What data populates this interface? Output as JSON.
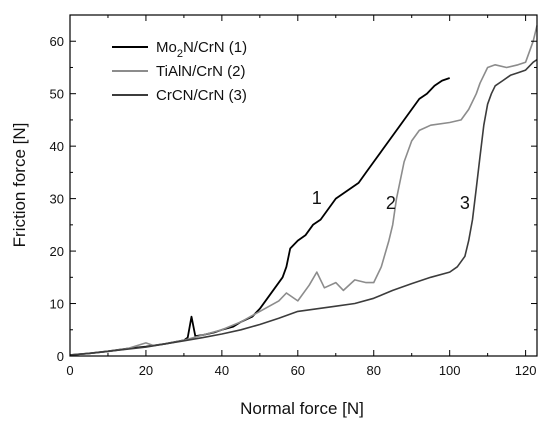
{
  "chart_data": {
    "type": "line",
    "xlabel": "Normal force [N]",
    "ylabel": "Friction force [N]",
    "xlim": [
      0,
      123
    ],
    "ylim": [
      0,
      65
    ],
    "x_ticks": [
      0,
      20,
      40,
      60,
      80,
      100,
      120
    ],
    "y_ticks": [
      0,
      10,
      20,
      30,
      40,
      50,
      60
    ],
    "legend_position": "top-left",
    "series": [
      {
        "name": "Mo₂N/CrN (1)",
        "name_base": "Mo",
        "name_sub": "2",
        "name_rest": "N/CrN (1)",
        "color": "#000000",
        "x": [
          0,
          5,
          10,
          15,
          20,
          25,
          30,
          31,
          32,
          33,
          35,
          38,
          40,
          43,
          45,
          48,
          50,
          52,
          54,
          56,
          57,
          58,
          60,
          62,
          64,
          66,
          68,
          70,
          72,
          74,
          76,
          78,
          80,
          82,
          84,
          86,
          88,
          90,
          92,
          94,
          96,
          98,
          100
        ],
        "y": [
          0.2,
          0.5,
          0.9,
          1.4,
          1.8,
          2.3,
          3.0,
          3.5,
          7.5,
          3.8,
          4.0,
          4.5,
          5.0,
          5.6,
          6.5,
          7.5,
          9.0,
          11.0,
          13.0,
          15.0,
          17.0,
          20.5,
          22.0,
          23.0,
          25.0,
          26.0,
          28.0,
          30.0,
          31.0,
          32.0,
          33.0,
          35.0,
          37.0,
          39.0,
          41.0,
          43.0,
          45.0,
          47.0,
          49.0,
          50.0,
          51.5,
          52.5,
          53.0
        ]
      },
      {
        "name": "TiAlN/CrN (2)",
        "color": "#8c8c8c",
        "x": [
          0,
          5,
          10,
          15,
          20,
          22,
          25,
          30,
          35,
          40,
          45,
          50,
          55,
          57,
          60,
          63,
          65,
          67,
          70,
          72,
          75,
          78,
          80,
          82,
          84,
          85,
          86,
          88,
          90,
          92,
          95,
          100,
          103,
          105,
          107,
          108,
          110,
          112,
          115,
          118,
          120,
          122,
          123
        ],
        "y": [
          0.2,
          0.5,
          0.9,
          1.4,
          2.5,
          2.0,
          2.3,
          3.0,
          4.0,
          5.0,
          6.5,
          8.5,
          10.5,
          12.0,
          10.5,
          13.5,
          16.0,
          13.0,
          14.0,
          12.5,
          14.5,
          14.0,
          14.0,
          17.0,
          22.0,
          25.0,
          30.0,
          37.0,
          41.0,
          43.0,
          44.0,
          44.5,
          45.0,
          47.0,
          50.0,
          52.0,
          55.0,
          55.5,
          55.0,
          55.5,
          56.0,
          60.0,
          63.0
        ]
      },
      {
        "name": "CrCN/CrN (3)",
        "color": "#3c3c3c",
        "x": [
          0,
          5,
          10,
          15,
          20,
          25,
          30,
          35,
          40,
          45,
          50,
          55,
          60,
          65,
          70,
          75,
          80,
          85,
          90,
          95,
          100,
          102,
          104,
          105,
          106,
          107,
          108,
          109,
          110,
          111,
          112,
          114,
          116,
          118,
          120,
          122,
          123
        ],
        "y": [
          0.2,
          0.5,
          0.9,
          1.3,
          1.7,
          2.3,
          2.9,
          3.5,
          4.2,
          5.0,
          6.0,
          7.2,
          8.5,
          9.0,
          9.5,
          10.0,
          11.0,
          12.5,
          13.8,
          15.0,
          16.0,
          17.0,
          19.0,
          22.0,
          26.0,
          32.0,
          38.0,
          44.0,
          48.0,
          50.0,
          51.5,
          52.5,
          53.5,
          54.0,
          54.5,
          56.0,
          56.5
        ]
      }
    ],
    "annotations": [
      {
        "text": "1",
        "x": 65,
        "y": 29
      },
      {
        "text": "2",
        "x": 84.5,
        "y": 28
      },
      {
        "text": "3",
        "x": 104,
        "y": 28
      }
    ]
  }
}
